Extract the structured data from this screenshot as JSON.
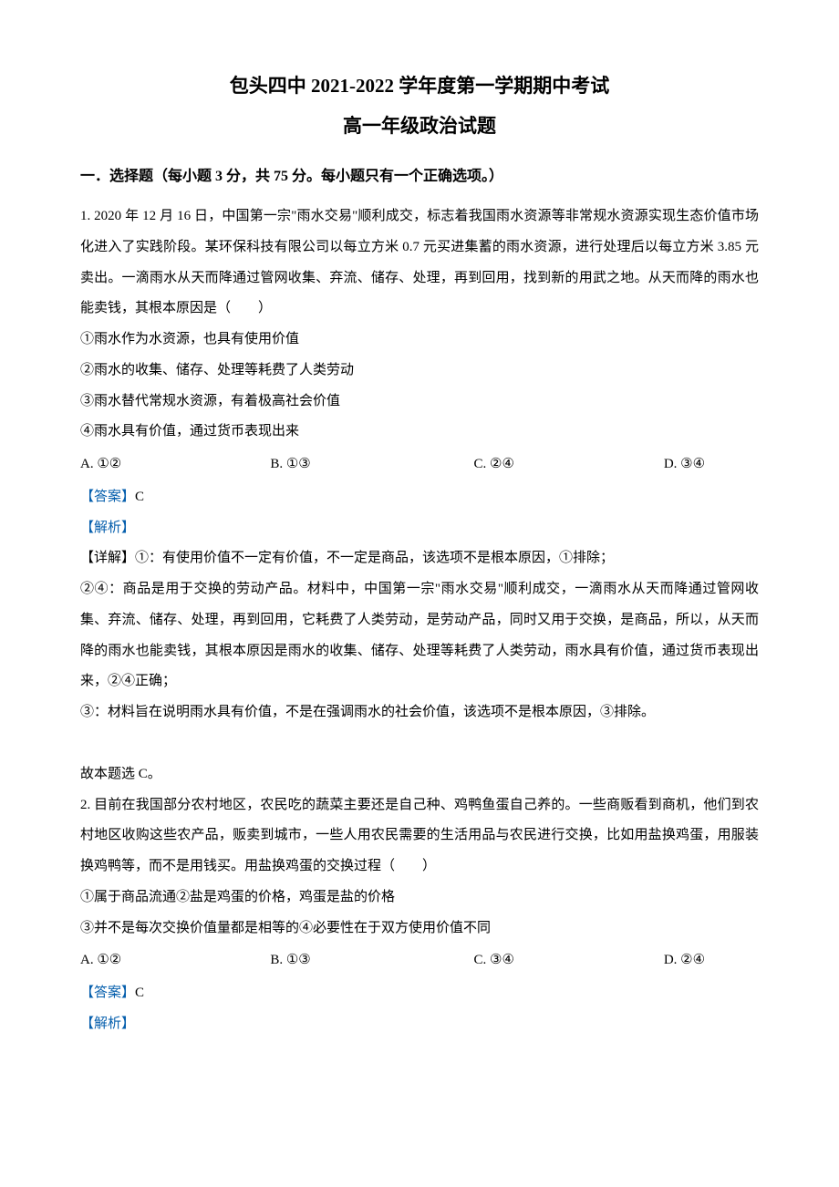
{
  "title_main": "包头四中 2021-2022 学年度第一学期期中考试",
  "title_sub": "高一年级政治试题",
  "section_header": "一．选择题（每小题 3 分，共 75 分。每小题只有一个正确选项。）",
  "q1": {
    "stem": "1. 2020 年 12 月 16 日，中国第一宗\"雨水交易\"顺利成交，标志着我国雨水资源等非常规水资源实现生态价值市场化进入了实践阶段。某环保科技有限公司以每立方米 0.7 元买进集蓄的雨水资源，进行处理后以每立方米 3.85 元卖出。一滴雨水从天而降通过管网收集、弃流、储存、处理，再到回用，找到新的用武之地。从天而降的雨水也能卖钱，其根本原因是（　　）",
    "item1": "①雨水作为水资源，也具有使用价值",
    "item2": "②雨水的收集、储存、处理等耗费了人类劳动",
    "item3": "③雨水替代常规水资源，有着极高社会价值",
    "item4": "④雨水具有价值，通过货币表现出来",
    "opt_a": "A. ①②",
    "opt_b": "B. ①③",
    "opt_c": "C. ②④",
    "opt_d": "D. ③④",
    "answer_label": "【答案】",
    "answer_value": "C",
    "analysis_label": "【解析】",
    "detail1": "【详解】①：有使用价值不一定有价值，不一定是商品，该选项不是根本原因，①排除；",
    "detail2": "②④：商品是用于交换的劳动产品。材料中，中国第一宗\"雨水交易\"顺利成交，一滴雨水从天而降通过管网收集、弃流、储存、处理，再到回用，它耗费了人类劳动，是劳动产品，同时又用于交换，是商品，所以，从天而降的雨水也能卖钱，其根本原因是雨水的收集、储存、处理等耗费了人类劳动，雨水具有价值，通过货币表现出来，②④正确；",
    "detail3": "③：材料旨在说明雨水具有价值，不是在强调雨水的社会价值，该选项不是根本原因，③排除。",
    "conclusion": "故本题选 C。"
  },
  "q2": {
    "stem": "2. 目前在我国部分农村地区，农民吃的蔬菜主要还是自己种、鸡鸭鱼蛋自己养的。一些商贩看到商机，他们到农村地区收购这些农产品，贩卖到城市，一些人用农民需要的生活用品与农民进行交换，比如用盐换鸡蛋，用服装换鸡鸭等，而不是用钱买。用盐换鸡蛋的交换过程（　　）",
    "item1": "①属于商品流通②盐是鸡蛋的价格，鸡蛋是盐的价格",
    "item2": "③并不是每次交换价值量都是相等的④必要性在于双方使用价值不同",
    "opt_a": "A. ①②",
    "opt_b": "B. ①③",
    "opt_c": "C. ③④",
    "opt_d": "D. ②④",
    "answer_label": "【答案】",
    "answer_value": "C",
    "analysis_label": "【解析】"
  }
}
